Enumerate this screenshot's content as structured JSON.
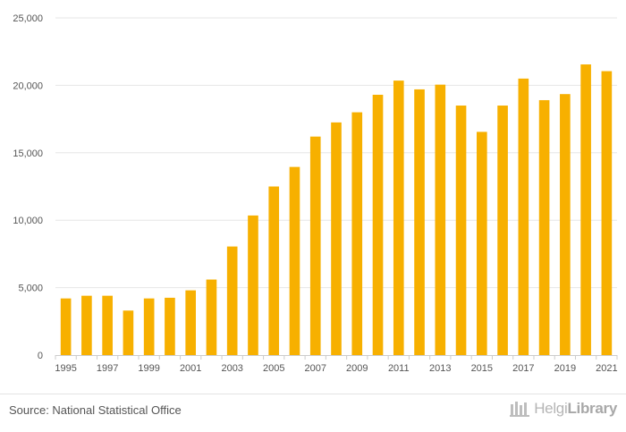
{
  "chart_data": {
    "type": "bar",
    "title": "",
    "xlabel": "",
    "ylabel": "",
    "ylim": [
      0,
      25000
    ],
    "yticks": [
      0,
      5000,
      10000,
      15000,
      20000,
      25000
    ],
    "ytick_labels": [
      "0",
      "5,000",
      "10,000",
      "15,000",
      "20,000",
      "25,000"
    ],
    "categories": [
      "1995",
      "1996",
      "1997",
      "1998",
      "1999",
      "2000",
      "2001",
      "2002",
      "2003",
      "2004",
      "2005",
      "2006",
      "2007",
      "2008",
      "2009",
      "2010",
      "2011",
      "2012",
      "2013",
      "2014",
      "2015",
      "2016",
      "2017",
      "2018",
      "2019",
      "2020",
      "2021"
    ],
    "xtick_labels": [
      "1995",
      "1997",
      "1999",
      "2001",
      "2003",
      "2005",
      "2007",
      "2009",
      "2011",
      "2013",
      "2015",
      "2017",
      "2019",
      "2021"
    ],
    "values": [
      4200,
      4400,
      4400,
      3300,
      4200,
      4250,
      4800,
      5600,
      8050,
      10350,
      12500,
      13950,
      16200,
      17250,
      18000,
      19300,
      20350,
      19700,
      20050,
      18500,
      16550,
      18500,
      20500,
      18900,
      19350,
      21550,
      21050
    ],
    "bar_color": "#f7b000",
    "grid": true,
    "legend": "none"
  },
  "footer": {
    "source": "Source: National Statistical Office",
    "logo_light": "Helgi",
    "logo_strong": "Library"
  },
  "colors": {
    "gridline": "#e6e6e6",
    "axis": "#cccccc",
    "tick_text": "#555555"
  }
}
